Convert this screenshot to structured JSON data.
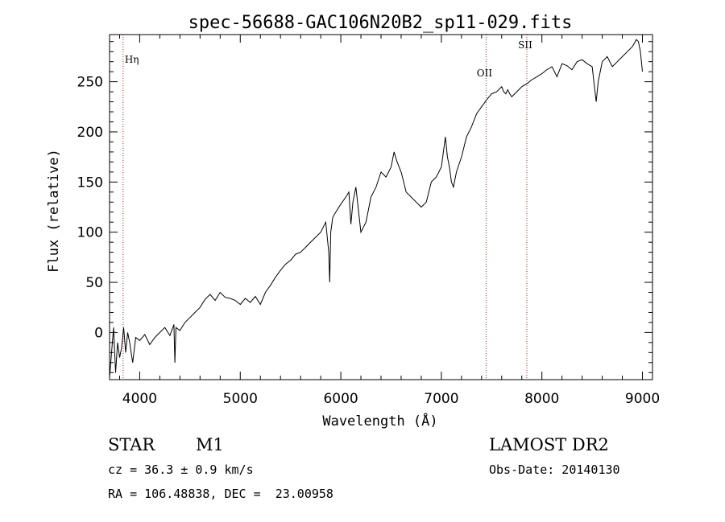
{
  "chart_data": {
    "type": "line",
    "title": "spec-56688-GAC106N20B2_sp11-029.fits",
    "xlabel": "Wavelength (Å)",
    "ylabel": "Flux (relative)",
    "xlim": [
      3700,
      9100
    ],
    "ylim": [
      -47,
      297
    ],
    "xticks": [
      4000,
      5000,
      6000,
      7000,
      8000,
      9000
    ],
    "yticks": [
      0,
      50,
      100,
      150,
      200,
      250
    ],
    "grid": false,
    "series": [
      {
        "x": [
          3700,
          3720,
          3740,
          3760,
          3780,
          3800,
          3820,
          3840,
          3860,
          3880,
          3900,
          3930,
          3960,
          4000,
          4050,
          4100,
          4150,
          4200,
          4250,
          4300,
          4340,
          4350,
          4360,
          4400,
          4450,
          4500,
          4550,
          4600,
          4650,
          4700,
          4750,
          4800,
          4850,
          4900,
          4950,
          5000,
          5050,
          5100,
          5150,
          5200,
          5250,
          5300,
          5350,
          5400,
          5450,
          5500,
          5550,
          5600,
          5650,
          5700,
          5750,
          5800,
          5850,
          5880,
          5890,
          5900,
          5920,
          5950,
          6000,
          6050,
          6080,
          6100,
          6120,
          6150,
          6180,
          6200,
          6250,
          6300,
          6350,
          6400,
          6450,
          6500,
          6530,
          6560,
          6600,
          6650,
          6700,
          6750,
          6800,
          6850,
          6900,
          6950,
          7000,
          7020,
          7040,
          7060,
          7080,
          7100,
          7120,
          7150,
          7200,
          7250,
          7300,
          7350,
          7400,
          7450,
          7500,
          7550,
          7600,
          7620,
          7640,
          7660,
          7680,
          7700,
          7750,
          7800,
          7850,
          7900,
          7950,
          8000,
          8050,
          8100,
          8150,
          8200,
          8250,
          8300,
          8350,
          8400,
          8450,
          8500,
          8540,
          8560,
          8600,
          8650,
          8700,
          8750,
          8800,
          8850,
          8900,
          8940,
          8960,
          8980,
          9000
        ],
        "y": [
          -45,
          -20,
          5,
          -40,
          -10,
          -25,
          -15,
          5,
          -20,
          0,
          -10,
          -30,
          -5,
          -8,
          -2,
          -12,
          -5,
          0,
          5,
          -3,
          8,
          -30,
          5,
          2,
          10,
          15,
          20,
          25,
          33,
          38,
          32,
          40,
          35,
          34,
          32,
          28,
          34,
          30,
          36,
          28,
          40,
          47,
          55,
          62,
          68,
          72,
          78,
          80,
          85,
          90,
          95,
          100,
          110,
          80,
          50,
          100,
          115,
          120,
          128,
          135,
          140,
          108,
          130,
          145,
          118,
          100,
          110,
          135,
          145,
          160,
          155,
          165,
          180,
          170,
          160,
          140,
          135,
          130,
          125,
          130,
          150,
          155,
          165,
          180,
          195,
          175,
          165,
          150,
          145,
          160,
          175,
          195,
          205,
          218,
          225,
          232,
          238,
          240,
          245,
          240,
          238,
          242,
          238,
          235,
          240,
          245,
          248,
          252,
          255,
          258,
          262,
          265,
          255,
          268,
          266,
          262,
          270,
          272,
          268,
          265,
          230,
          250,
          270,
          275,
          265,
          270,
          275,
          280,
          285,
          292,
          290,
          280,
          260
        ]
      }
    ],
    "line_markers": [
      {
        "label": "Hη",
        "x": 3835
      },
      {
        "label": "OII",
        "x": 7445
      },
      {
        "label": "SII",
        "x": 7850
      }
    ],
    "info": {
      "class": "STAR",
      "subclass": "M1",
      "survey": "LAMOST DR2",
      "cz": "cz = 36.3 ± 0.9 km/s",
      "obs_date": "Obs-Date: 20140130",
      "coords": "RA = 106.48838, DEC =  23.00958"
    }
  }
}
